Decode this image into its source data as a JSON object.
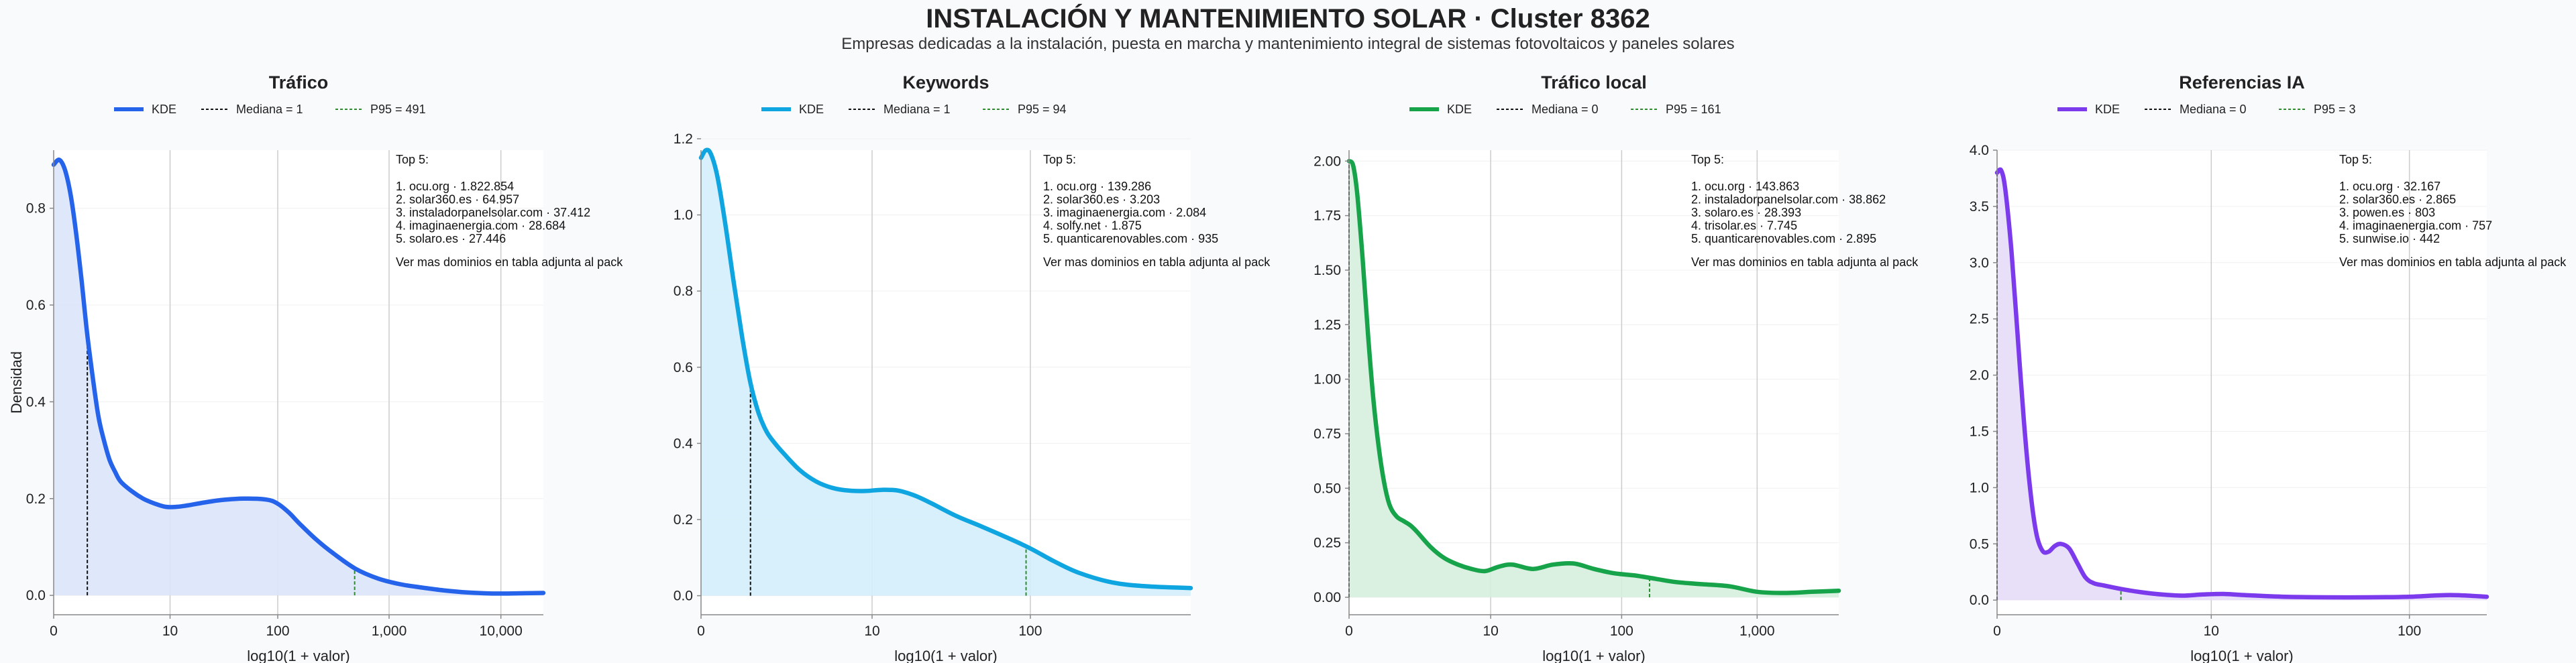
{
  "header": {
    "title": "INSTALACIÓN Y MANTENIMIENTO SOLAR · Cluster 8362",
    "subtitle": "Empresas dedicadas a la instalación, puesta en marcha y mantenimiento integral de sistemas fotovoltaicos y paneles solares"
  },
  "chart_data": [
    {
      "type": "area",
      "title": "Tráfico",
      "xlabel": "log10(1 + valor)",
      "ylabel": "Densidad",
      "color": "#2563eb",
      "fill": "#dbe4fb",
      "xlim": [
        0,
        4.38
      ],
      "ylim": [
        -0.04,
        0.92
      ],
      "xticks": [
        {
          "v": 0,
          "label": "0"
        },
        {
          "v": 1.041,
          "label": "10"
        },
        {
          "v": 2.004,
          "label": "100"
        },
        {
          "v": 3.0,
          "label": "1,000"
        },
        {
          "v": 4.0,
          "label": "10,000"
        }
      ],
      "yticks": [
        {
          "v": 0,
          "label": "0.0"
        },
        {
          "v": 0.2,
          "label": "0.2"
        },
        {
          "v": 0.4,
          "label": "0.4"
        },
        {
          "v": 0.6,
          "label": "0.6"
        },
        {
          "v": 0.8,
          "label": "0.8"
        }
      ],
      "median": 0.301,
      "p95": 2.692,
      "legend": {
        "kde": "KDE",
        "median": "Mediana = 1",
        "p95": "P95 = 491"
      },
      "x": [
        0,
        0.05,
        0.1,
        0.15,
        0.2,
        0.25,
        0.3,
        0.35,
        0.4,
        0.45,
        0.5,
        0.55,
        0.6,
        0.7,
        0.8,
        0.9,
        1.0,
        1.1,
        1.2,
        1.35,
        1.5,
        1.7,
        1.9,
        2.0,
        2.1,
        2.2,
        2.35,
        2.5,
        2.7,
        2.9,
        3.1,
        3.3,
        3.5,
        3.7,
        3.9,
        4.1,
        4.38
      ],
      "y": [
        0.89,
        0.9,
        0.88,
        0.83,
        0.75,
        0.65,
        0.54,
        0.45,
        0.37,
        0.32,
        0.28,
        0.255,
        0.235,
        0.215,
        0.2,
        0.19,
        0.183,
        0.183,
        0.186,
        0.192,
        0.197,
        0.2,
        0.198,
        0.19,
        0.172,
        0.148,
        0.115,
        0.087,
        0.055,
        0.035,
        0.023,
        0.016,
        0.01,
        0.006,
        0.004,
        0.004,
        0.005
      ],
      "top5": {
        "title": "Top 5:",
        "items": [
          "1. ocu.org · 1.822.854",
          "2. solar360.es · 64.957",
          "3. instaladorpanelsolar.com · 37.412",
          "4. imaginaenergia.com · 28.684",
          "5. solaro.es · 27.446"
        ],
        "footer": "Ver mas dominios en tabla adjunta al pack"
      }
    },
    {
      "type": "area",
      "title": "Keywords",
      "xlabel": "log10(1 + valor)",
      "ylabel": "",
      "color": "#0ea5e0",
      "fill": "#d4eefb",
      "xlim": [
        0,
        2.98
      ],
      "ylim": [
        -0.05,
        1.17
      ],
      "xticks": [
        {
          "v": 0,
          "label": "0"
        },
        {
          "v": 1.041,
          "label": "10"
        },
        {
          "v": 2.004,
          "label": "100"
        }
      ],
      "yticks": [
        {
          "v": 0,
          "label": "0.0"
        },
        {
          "v": 0.2,
          "label": "0.2"
        },
        {
          "v": 0.4,
          "label": "0.4"
        },
        {
          "v": 0.6,
          "label": "0.6"
        },
        {
          "v": 0.8,
          "label": "0.8"
        },
        {
          "v": 1.0,
          "label": "1.0"
        },
        {
          "v": 1.2,
          "label": "1.2"
        }
      ],
      "median": 0.301,
      "p95": 1.978,
      "legend": {
        "kde": "KDE",
        "median": "Mediana = 1",
        "p95": "P95 = 94"
      },
      "x": [
        0,
        0.03,
        0.06,
        0.1,
        0.15,
        0.2,
        0.25,
        0.3,
        0.35,
        0.4,
        0.45,
        0.5,
        0.6,
        0.7,
        0.8,
        0.9,
        1.0,
        1.1,
        1.2,
        1.3,
        1.4,
        1.55,
        1.7,
        1.85,
        2.0,
        2.15,
        2.3,
        2.5,
        2.7,
        2.98
      ],
      "y": [
        1.15,
        1.17,
        1.16,
        1.1,
        0.97,
        0.82,
        0.68,
        0.56,
        0.48,
        0.43,
        0.4,
        0.375,
        0.33,
        0.3,
        0.283,
        0.276,
        0.275,
        0.278,
        0.276,
        0.263,
        0.243,
        0.21,
        0.183,
        0.155,
        0.125,
        0.09,
        0.06,
        0.035,
        0.025,
        0.02
      ],
      "top5": {
        "title": "Top 5:",
        "items": [
          "1. ocu.org · 139.286",
          "2. solar360.es · 3.203",
          "3. imaginaenergia.com · 2.084",
          "4. solfy.net · 1.875",
          "5. quanticarenovables.com · 935"
        ],
        "footer": "Ver mas dominios en tabla adjunta al pack"
      }
    },
    {
      "type": "area",
      "title": "Tráfico local",
      "xlabel": "log10(1 + valor)",
      "ylabel": "",
      "color": "#16a34a",
      "fill": "#d6eedd",
      "xlim": [
        0,
        3.6
      ],
      "ylim": [
        -0.08,
        2.05
      ],
      "xticks": [
        {
          "v": 0,
          "label": "0"
        },
        {
          "v": 1.041,
          "label": "10"
        },
        {
          "v": 2.004,
          "label": "100"
        },
        {
          "v": 3.0,
          "label": "1,000"
        }
      ],
      "yticks": [
        {
          "v": 0,
          "label": "0.00"
        },
        {
          "v": 0.25,
          "label": "0.25"
        },
        {
          "v": 0.5,
          "label": "0.50"
        },
        {
          "v": 0.75,
          "label": "0.75"
        },
        {
          "v": 1.0,
          "label": "1.00"
        },
        {
          "v": 1.25,
          "label": "1.25"
        },
        {
          "v": 1.5,
          "label": "1.50"
        },
        {
          "v": 1.75,
          "label": "1.75"
        },
        {
          "v": 2.0,
          "label": "2.00"
        }
      ],
      "median": 0,
      "p95": 2.209,
      "legend": {
        "kde": "KDE",
        "median": "Mediana = 0",
        "p95": "P95 = 161"
      },
      "x": [
        0,
        0.03,
        0.06,
        0.1,
        0.14,
        0.18,
        0.22,
        0.26,
        0.3,
        0.35,
        0.4,
        0.45,
        0.5,
        0.6,
        0.7,
        0.8,
        0.9,
        1.0,
        1.1,
        1.2,
        1.35,
        1.5,
        1.65,
        1.8,
        1.95,
        2.1,
        2.25,
        2.4,
        2.6,
        2.8,
        3.0,
        3.2,
        3.4,
        3.6
      ],
      "y": [
        2.0,
        1.98,
        1.85,
        1.55,
        1.2,
        0.9,
        0.68,
        0.52,
        0.42,
        0.37,
        0.35,
        0.33,
        0.3,
        0.23,
        0.18,
        0.15,
        0.13,
        0.12,
        0.14,
        0.15,
        0.13,
        0.15,
        0.155,
        0.13,
        0.11,
        0.1,
        0.085,
        0.07,
        0.06,
        0.05,
        0.025,
        0.02,
        0.025,
        0.03
      ],
      "top5": {
        "title": "Top 5:",
        "items": [
          "1. ocu.org · 143.863",
          "2. instaladorpanelsolar.com · 38.862",
          "3. solaro.es · 28.393",
          "4. trisolar.es · 7.745",
          "5. quanticarenovables.com · 2.895"
        ],
        "footer": "Ver mas dominios en tabla adjunta al pack"
      }
    },
    {
      "type": "area",
      "title": "Referencias IA",
      "xlabel": "log10(1 + valor)",
      "ylabel": "",
      "color": "#7c3aed",
      "fill": "#e6dcf8",
      "xlim": [
        0,
        2.38
      ],
      "ylim": [
        -0.13,
        4.0
      ],
      "xticks": [
        {
          "v": 0,
          "label": "0"
        },
        {
          "v": 1.041,
          "label": "10"
        },
        {
          "v": 2.004,
          "label": "100"
        }
      ],
      "yticks": [
        {
          "v": 0,
          "label": "0.0"
        },
        {
          "v": 0.5,
          "label": "0.5"
        },
        {
          "v": 1.0,
          "label": "1.0"
        },
        {
          "v": 1.5,
          "label": "1.5"
        },
        {
          "v": 2.0,
          "label": "2.0"
        },
        {
          "v": 2.5,
          "label": "2.5"
        },
        {
          "v": 3.0,
          "label": "3.0"
        },
        {
          "v": 3.5,
          "label": "3.5"
        },
        {
          "v": 4.0,
          "label": "4.0"
        }
      ],
      "median": 0,
      "p95": 0.602,
      "legend": {
        "kde": "KDE",
        "median": "Mediana = 0",
        "p95": "P95 = 3"
      },
      "x": [
        0,
        0.02,
        0.04,
        0.07,
        0.1,
        0.13,
        0.16,
        0.19,
        0.22,
        0.25,
        0.28,
        0.31,
        0.35,
        0.39,
        0.43,
        0.47,
        0.52,
        0.6,
        0.7,
        0.8,
        0.9,
        1.0,
        1.1,
        1.2,
        1.4,
        1.6,
        1.8,
        2.0,
        2.2,
        2.38
      ],
      "y": [
        3.8,
        3.82,
        3.65,
        3.1,
        2.35,
        1.6,
        1.0,
        0.6,
        0.44,
        0.43,
        0.48,
        0.5,
        0.46,
        0.33,
        0.2,
        0.15,
        0.13,
        0.1,
        0.07,
        0.05,
        0.04,
        0.05,
        0.055,
        0.045,
        0.03,
        0.025,
        0.025,
        0.03,
        0.045,
        0.03
      ],
      "top5": {
        "title": "Top 5:",
        "items": [
          "1. ocu.org · 32.167",
          "2. solar360.es · 2.865",
          "3. powen.es · 803",
          "4. imaginaenergia.com · 757",
          "5. sunwise.io · 442"
        ],
        "footer": "Ver mas dominios en tabla adjunta al pack"
      }
    }
  ]
}
